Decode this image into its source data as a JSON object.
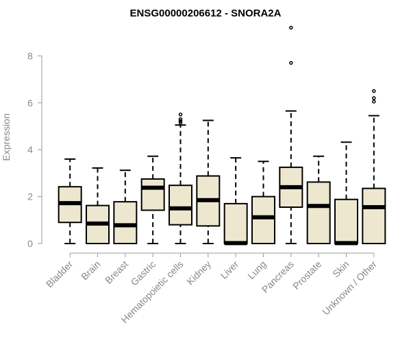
{
  "chart_data": {
    "type": "box",
    "title": "ENSG00000206612 - SNORA2A",
    "xlabel": "",
    "ylabel": "Expression",
    "ylim": [
      0,
      9.3
    ],
    "yticks": [
      0,
      2,
      4,
      6,
      8
    ],
    "grid": false,
    "legend": "none",
    "box_fill": "#ede7cf",
    "box_stroke": "#000000",
    "categories": [
      "Bladder",
      "Brain",
      "Breast",
      "Gastric",
      "Hematopoietic cells",
      "Kidney",
      "Liver",
      "Lung",
      "Pancreas",
      "Prostate",
      "Skin",
      "Unknown / Other"
    ],
    "boxes": [
      {
        "category": "Bladder",
        "whisker_low": 0,
        "q1": 0.9,
        "median": 1.72,
        "q3": 2.42,
        "whisker_high": 3.6,
        "outliers": []
      },
      {
        "category": "Brain",
        "whisker_low": 0,
        "q1": 0,
        "median": 0.85,
        "q3": 1.62,
        "whisker_high": 3.22,
        "outliers": []
      },
      {
        "category": "Breast",
        "whisker_low": 0,
        "q1": 0,
        "median": 0.78,
        "q3": 1.78,
        "whisker_high": 3.12,
        "outliers": []
      },
      {
        "category": "Gastric",
        "whisker_low": 0,
        "q1": 1.42,
        "median": 2.38,
        "q3": 2.75,
        "whisker_high": 3.72,
        "outliers": []
      },
      {
        "category": "Hematopoietic cells",
        "whisker_low": 0,
        "q1": 0.8,
        "median": 1.5,
        "q3": 2.48,
        "whisker_high": 5.05,
        "outliers": [
          5.15,
          5.22,
          5.3,
          5.5
        ]
      },
      {
        "category": "Kidney",
        "whisker_low": 0,
        "q1": 0.75,
        "median": 1.85,
        "q3": 2.88,
        "whisker_high": 5.25,
        "outliers": []
      },
      {
        "category": "Liver",
        "whisker_low": 0,
        "q1": 0,
        "median": 0.02,
        "q3": 1.7,
        "whisker_high": 3.65,
        "outliers": []
      },
      {
        "category": "Lung",
        "whisker_low": 0,
        "q1": 0,
        "median": 1.12,
        "q3": 2.0,
        "whisker_high": 3.5,
        "outliers": []
      },
      {
        "category": "Pancreas",
        "whisker_low": 0,
        "q1": 1.55,
        "median": 2.4,
        "q3": 3.25,
        "whisker_high": 5.65,
        "outliers": [
          7.7,
          9.2
        ]
      },
      {
        "category": "Prostate",
        "whisker_low": 0,
        "q1": 0,
        "median": 1.6,
        "q3": 2.62,
        "whisker_high": 3.72,
        "outliers": []
      },
      {
        "category": "Skin",
        "whisker_low": 0,
        "q1": 0,
        "median": 0.02,
        "q3": 1.88,
        "whisker_high": 4.32,
        "outliers": []
      },
      {
        "category": "Unknown / Other",
        "whisker_low": 0,
        "q1": 0,
        "median": 1.55,
        "q3": 2.35,
        "whisker_high": 5.45,
        "outliers": [
          6.05,
          6.2,
          6.5
        ]
      }
    ]
  }
}
